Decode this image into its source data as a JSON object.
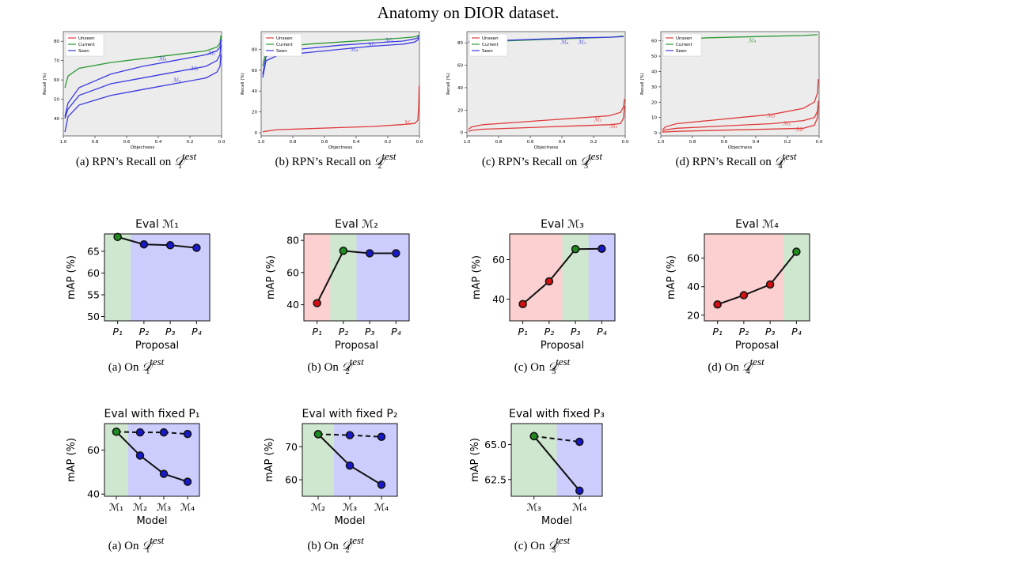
{
  "page": {
    "title": "Anatomy on DIOR dataset."
  },
  "captions": {
    "recall": [
      {
        "prefix": "(a) RPN’s Recall on ",
        "sub": "1",
        "sup": "test"
      },
      {
        "prefix": "(b) RPN’s Recall on ",
        "sub": "2",
        "sup": "test"
      },
      {
        "prefix": "(c) RPN’s Recall on ",
        "sub": "3",
        "sup": "test"
      },
      {
        "prefix": "(d) RPN’s Recall on ",
        "sub": "4",
        "sup": "test"
      }
    ],
    "eval": [
      {
        "prefix": "(a) On ",
        "sub": "1",
        "sup": "test"
      },
      {
        "prefix": "(b) On ",
        "sub": "2",
        "sup": "test"
      },
      {
        "prefix": "(c) On ",
        "sub": "3",
        "sup": "test"
      },
      {
        "prefix": "(d) On ",
        "sub": "4",
        "sup": "test"
      }
    ],
    "fixed": [
      {
        "prefix": "(a) On ",
        "sub": "1",
        "sup": "test"
      },
      {
        "prefix": "(b) On ",
        "sub": "2",
        "sup": "test"
      },
      {
        "prefix": "(c) On ",
        "sub": "3",
        "sup": "test"
      }
    ]
  },
  "colors": {
    "unseen": "#e03a3a",
    "current": "#2e9a35",
    "seen": "#3a3ae0",
    "plot_bg": "#ececec",
    "region_red": "#fcd0d0",
    "region_green": "#cfe6cf",
    "region_blue": "#cccdfd"
  },
  "chart_data": [
    {
      "type": "line",
      "id": "recall-1",
      "xlabel": "Objectness",
      "ylabel": "Recall (%)",
      "xlim": [
        1.0,
        0.0
      ],
      "ylim": [
        31,
        85
      ],
      "xticks": [
        "1.0",
        "0.8",
        "0.6",
        "0.4",
        "0.2",
        "0.0"
      ],
      "yticks": [
        40,
        50,
        60,
        70,
        80
      ],
      "legend": [
        "Unseen",
        "Current",
        "Seen"
      ],
      "legend_position": "top-left",
      "series": [
        {
          "name": "Current",
          "color": "current",
          "x": [
            0.99,
            0.97,
            0.9,
            0.7,
            0.5,
            0.3,
            0.1,
            0.03,
            0.01,
            0.005
          ],
          "y": [
            56,
            62,
            66,
            69,
            71,
            73,
            75,
            77,
            79,
            83
          ]
        },
        {
          "name": "Seen",
          "color": "seen",
          "x": [
            0.99,
            0.97,
            0.9,
            0.7,
            0.5,
            0.3,
            0.1,
            0.03,
            0.01,
            0.005
          ],
          "y": [
            41,
            48,
            56,
            63,
            67,
            70,
            73,
            75,
            77,
            81
          ]
        },
        {
          "name": "Seen",
          "color": "seen",
          "x": [
            0.99,
            0.97,
            0.9,
            0.7,
            0.5,
            0.3,
            0.1,
            0.03,
            0.01,
            0.005
          ],
          "y": [
            40,
            45,
            52,
            58,
            61,
            64,
            67,
            70,
            73,
            78
          ]
        },
        {
          "name": "Seen",
          "color": "seen",
          "x": [
            0.99,
            0.97,
            0.9,
            0.7,
            0.5,
            0.3,
            0.1,
            0.03,
            0.01,
            0.005
          ],
          "y": [
            33,
            41,
            47,
            52,
            55,
            58,
            61,
            64,
            67,
            73
          ]
        }
      ],
      "annotations": [
        {
          "text": "ℳ₁",
          "x": 0.09,
          "y": 73,
          "color": "seen"
        },
        {
          "text": "ℳ₄",
          "x": 0.4,
          "y": 70,
          "color": "seen"
        },
        {
          "text": "ℳ₂",
          "x": 0.2,
          "y": 65,
          "color": "seen"
        },
        {
          "text": "ℳ₃",
          "x": 0.31,
          "y": 59,
          "color": "seen"
        }
      ]
    },
    {
      "type": "line",
      "id": "recall-2",
      "xlabel": "Objectness",
      "ylabel": "Recall (%)",
      "xlim": [
        1.0,
        0.0
      ],
      "ylim": [
        -3,
        97
      ],
      "xticks": [
        "1.0",
        "0.8",
        "0.6",
        "0.4",
        "0.2",
        "0.0"
      ],
      "yticks": [
        0,
        20,
        40,
        60,
        80
      ],
      "legend": [
        "Unseen",
        "Current",
        "Seen"
      ],
      "legend_position": "top-left",
      "series": [
        {
          "name": "Current",
          "color": "current",
          "x": [
            0.99,
            0.97,
            0.9,
            0.7,
            0.5,
            0.3,
            0.1,
            0.03,
            0.01,
            0.005
          ],
          "y": [
            64,
            78,
            82,
            85,
            87,
            89,
            91,
            92,
            93,
            94
          ]
        },
        {
          "name": "Seen",
          "color": "seen",
          "x": [
            0.99,
            0.97,
            0.9,
            0.7,
            0.5,
            0.3,
            0.1,
            0.03,
            0.01,
            0.005
          ],
          "y": [
            56,
            73,
            78,
            81,
            84,
            86,
            88,
            90,
            91,
            93
          ]
        },
        {
          "name": "Seen",
          "color": "seen",
          "x": [
            0.99,
            0.97,
            0.9,
            0.7,
            0.5,
            0.3,
            0.1,
            0.03,
            0.01,
            0.005
          ],
          "y": [
            53,
            69,
            74,
            77,
            80,
            83,
            85,
            87,
            89,
            91
          ]
        },
        {
          "name": "Unseen",
          "color": "unseen",
          "x": [
            0.99,
            0.9,
            0.7,
            0.5,
            0.3,
            0.1,
            0.03,
            0.01,
            0.005,
            0.002
          ],
          "y": [
            1,
            3,
            4,
            5,
            6,
            8,
            9,
            12,
            25,
            45
          ]
        }
      ],
      "annotations": [
        {
          "text": "ℳ₃",
          "x": 0.22,
          "y": 87,
          "color": "seen"
        },
        {
          "text": "ℳ₂",
          "x": 0.33,
          "y": 83,
          "color": "seen"
        },
        {
          "text": "ℳ₄",
          "x": 0.44,
          "y": 78,
          "color": "seen"
        },
        {
          "text": "ℳ₁",
          "x": 0.1,
          "y": 8,
          "color": "unseen"
        }
      ]
    },
    {
      "type": "line",
      "id": "recall-3",
      "xlabel": "Objectness",
      "ylabel": "Recall (%)",
      "xlim": [
        1.0,
        0.0
      ],
      "ylim": [
        -3,
        90
      ],
      "xticks": [
        "1.0",
        "0.8",
        "0.6",
        "0.4",
        "0.2",
        "0.0"
      ],
      "yticks": [
        0,
        20,
        40,
        60,
        80
      ],
      "legend": [
        "Unseen",
        "Current",
        "Seen"
      ],
      "legend_position": "top-left",
      "series": [
        {
          "name": "Current",
          "color": "current",
          "x": [
            0.99,
            0.9,
            0.7,
            0.5,
            0.3,
            0.1,
            0.01
          ],
          "y": [
            80,
            81,
            82,
            83,
            84,
            85,
            86
          ]
        },
        {
          "name": "Seen",
          "color": "seen",
          "x": [
            0.99,
            0.9,
            0.7,
            0.5,
            0.3,
            0.1,
            0.01
          ],
          "y": [
            81,
            81.5,
            82.5,
            83.5,
            84.5,
            85,
            85.5
          ]
        },
        {
          "name": "Unseen",
          "color": "unseen",
          "x": [
            0.99,
            0.97,
            0.9,
            0.7,
            0.5,
            0.3,
            0.1,
            0.03,
            0.01,
            0.005
          ],
          "y": [
            3,
            5,
            7,
            9,
            11,
            13,
            15,
            18,
            23,
            30
          ]
        },
        {
          "name": "Unseen",
          "color": "unseen",
          "x": [
            0.99,
            0.97,
            0.9,
            0.7,
            0.5,
            0.3,
            0.1,
            0.03,
            0.01,
            0.005
          ],
          "y": [
            1,
            2,
            3,
            4,
            5,
            6,
            7,
            8,
            13,
            24
          ]
        }
      ],
      "annotations": [
        {
          "text": "ℳ₄",
          "x": 0.41,
          "y": 79,
          "color": "seen"
        },
        {
          "text": "ℳ₃",
          "x": 0.3,
          "y": 79,
          "color": "seen"
        },
        {
          "text": "ℳ₂",
          "x": 0.2,
          "y": 10,
          "color": "unseen"
        },
        {
          "text": "ℳ₁",
          "x": 0.1,
          "y": 4,
          "color": "unseen"
        }
      ]
    },
    {
      "type": "line",
      "id": "recall-4",
      "xlabel": "Objectness",
      "ylabel": "Recall (%)",
      "xlim": [
        1.0,
        0.0
      ],
      "ylim": [
        -2,
        66
      ],
      "xticks": [
        "1.0",
        "0.8",
        "0.6",
        "0.4",
        "0.2",
        "0.0"
      ],
      "yticks": [
        0,
        10,
        20,
        30,
        40,
        50,
        60
      ],
      "legend": [
        "Unseen",
        "Current",
        "Seen"
      ],
      "legend_position": "top-left",
      "series": [
        {
          "name": "Current",
          "color": "current",
          "x": [
            0.99,
            0.9,
            0.7,
            0.5,
            0.3,
            0.1,
            0.01
          ],
          "y": [
            60,
            61,
            62,
            62.5,
            63,
            63.5,
            64
          ]
        },
        {
          "name": "Unseen",
          "color": "unseen",
          "x": [
            0.99,
            0.97,
            0.9,
            0.7,
            0.5,
            0.3,
            0.1,
            0.03,
            0.01,
            0.005
          ],
          "y": [
            2,
            4,
            6,
            8,
            10,
            12,
            16,
            20,
            26,
            35
          ]
        },
        {
          "name": "Unseen",
          "color": "unseen",
          "x": [
            0.99,
            0.97,
            0.9,
            0.7,
            0.5,
            0.3,
            0.1,
            0.03,
            0.01,
            0.005
          ],
          "y": [
            1,
            2,
            3,
            4,
            5,
            6,
            8,
            10,
            14,
            21
          ]
        },
        {
          "name": "Unseen",
          "color": "unseen",
          "x": [
            0.99,
            0.9,
            0.7,
            0.5,
            0.3,
            0.1,
            0.03,
            0.01,
            0.005
          ],
          "y": [
            0.5,
            1,
            1.5,
            2,
            2.5,
            3,
            5,
            10,
            18
          ]
        }
      ],
      "annotations": [
        {
          "text": "ℳ₄",
          "x": 0.45,
          "y": 59,
          "color": "current"
        },
        {
          "text": "ℳ₃",
          "x": 0.33,
          "y": 10,
          "color": "unseen"
        },
        {
          "text": "ℳ₂",
          "x": 0.23,
          "y": 5,
          "color": "unseen"
        },
        {
          "text": "ℳ₁",
          "x": 0.15,
          "y": 1,
          "color": "unseen"
        }
      ]
    },
    {
      "type": "line",
      "id": "eval-1",
      "title": "Eval ℳ₁",
      "xlabel": "Proposal",
      "ylabel": "mAP (%)",
      "categories": [
        "P₁",
        "P₂",
        "P₃",
        "P₄"
      ],
      "ylim": [
        49,
        69
      ],
      "yticks": [
        50,
        55,
        60,
        65
      ],
      "regions": [
        "green",
        "blue",
        "blue",
        "blue"
      ],
      "points": [
        {
          "value": 68.3,
          "fill": "green"
        },
        {
          "value": 66.6,
          "fill": "blue"
        },
        {
          "value": 66.4,
          "fill": "blue"
        },
        {
          "value": 65.8,
          "fill": "blue"
        }
      ]
    },
    {
      "type": "line",
      "id": "eval-2",
      "title": "Eval ℳ₂",
      "xlabel": "Proposal",
      "ylabel": "mAP (%)",
      "categories": [
        "P₁",
        "P₂",
        "P₃",
        "P₄"
      ],
      "ylim": [
        30,
        84
      ],
      "yticks": [
        40,
        60,
        80
      ],
      "regions": [
        "red",
        "green",
        "blue",
        "blue"
      ],
      "points": [
        {
          "value": 41,
          "fill": "red"
        },
        {
          "value": 73.5,
          "fill": "green"
        },
        {
          "value": 72,
          "fill": "blue"
        },
        {
          "value": 72,
          "fill": "blue"
        }
      ]
    },
    {
      "type": "line",
      "id": "eval-3",
      "title": "Eval ℳ₃",
      "xlabel": "Proposal",
      "ylabel": "mAP (%)",
      "categories": [
        "P₁",
        "P₂",
        "P₃",
        "P₄"
      ],
      "ylim": [
        29,
        73
      ],
      "yticks": [
        40,
        60
      ],
      "regions": [
        "red",
        "red",
        "green",
        "blue"
      ],
      "points": [
        {
          "value": 37.5,
          "fill": "red"
        },
        {
          "value": 49,
          "fill": "red"
        },
        {
          "value": 65.3,
          "fill": "green"
        },
        {
          "value": 65.5,
          "fill": "blue"
        }
      ]
    },
    {
      "type": "line",
      "id": "eval-4",
      "title": "Eval ℳ₄",
      "xlabel": "Proposal",
      "ylabel": "mAP (%)",
      "categories": [
        "P₁",
        "P₂",
        "P₃",
        "P₄"
      ],
      "ylim": [
        16,
        77
      ],
      "yticks": [
        20,
        40,
        60
      ],
      "regions": [
        "red",
        "red",
        "red",
        "green"
      ],
      "points": [
        {
          "value": 27.5,
          "fill": "red"
        },
        {
          "value": 34,
          "fill": "red"
        },
        {
          "value": 41.5,
          "fill": "red"
        },
        {
          "value": 64.5,
          "fill": "green"
        }
      ]
    },
    {
      "type": "line",
      "id": "fixed-1",
      "title": "Eval with fixed P₁",
      "xlabel": "Model",
      "ylabel": "mAP (%)",
      "categories": [
        "ℳ₁",
        "ℳ₂",
        "ℳ₃",
        "ℳ₄"
      ],
      "ylim": [
        39,
        72
      ],
      "yticks": [
        40,
        60
      ],
      "regions": [
        "green",
        "blue",
        "blue",
        "blue"
      ],
      "series": [
        {
          "style": "dashed",
          "values": [
            68.3,
            68,
            68,
            67.3
          ]
        },
        {
          "style": "solid",
          "values": [
            68.3,
            57.5,
            49.2,
            45.6
          ]
        }
      ],
      "first_fill": "green"
    },
    {
      "type": "line",
      "id": "fixed-2",
      "title": "Eval with fixed P₂",
      "xlabel": "Model",
      "ylabel": "mAP (%)",
      "categories": [
        "ℳ₂",
        "ℳ₃",
        "ℳ₄"
      ],
      "ylim": [
        55,
        77
      ],
      "yticks": [
        60,
        70
      ],
      "regions": [
        "green",
        "blue",
        "blue"
      ],
      "series": [
        {
          "style": "dashed",
          "values": [
            73.8,
            73.5,
            73
          ]
        },
        {
          "style": "solid",
          "values": [
            73.8,
            64.3,
            58.5
          ]
        }
      ],
      "first_fill": "green"
    },
    {
      "type": "line",
      "id": "fixed-3",
      "title": "Eval with fixed P₃",
      "xlabel": "Model",
      "ylabel": "mAP (%)",
      "categories": [
        "ℳ₃",
        "ℳ₄"
      ],
      "ylim": [
        61.3,
        66.5
      ],
      "yticks": [
        62.5,
        65.0
      ],
      "tick_format": 1,
      "regions": [
        "green",
        "blue"
      ],
      "series": [
        {
          "style": "dashed",
          "values": [
            65.6,
            65.2
          ]
        },
        {
          "style": "solid",
          "values": [
            65.6,
            61.7
          ]
        }
      ],
      "first_fill": "green"
    }
  ]
}
